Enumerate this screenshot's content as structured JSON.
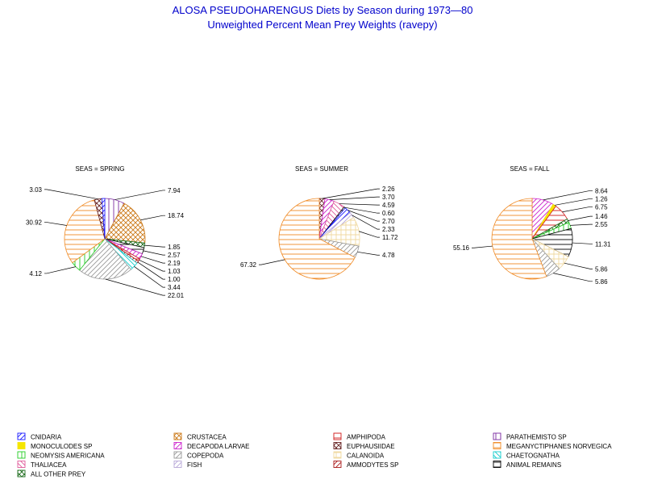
{
  "title_line1": "ALOSA PSEUDOHARENGUS Diets by Season during 1973—80",
  "title_line2": "Unweighted Percent Mean Prey Weights (ravepy)",
  "legend": [
    {
      "key": "CNIDARIA",
      "name": "CNIDARIA",
      "color": "#1a1aff",
      "pattern": "diag-r"
    },
    {
      "key": "CRUSTACEA",
      "name": "CRUSTACEA",
      "color": "#cc7a1a",
      "pattern": "cross-x"
    },
    {
      "key": "AMPHIPODA",
      "name": "AMPHIPODA",
      "color": "#d11a1a",
      "pattern": "horiz"
    },
    {
      "key": "PARATHEMISTO_SP",
      "name": "PARATHEMISTO SP",
      "color": "#7a2aa0",
      "pattern": "vert"
    },
    {
      "key": "MONOCULODES_SP",
      "name": "MONOCULODES SP",
      "color": "#f5e600",
      "pattern": "solid"
    },
    {
      "key": "DECAPODA_LARVAE",
      "name": "DECAPODA LARVAE",
      "color": "#cc22cc",
      "pattern": "diag-r"
    },
    {
      "key": "EUPHAUSIIDAE",
      "name": "EUPHAUSIIDAE",
      "color": "#662222",
      "pattern": "cross-x"
    },
    {
      "key": "MEGANYCTIPHANES_NORVEGICA",
      "name": "MEGANYCTIPHANES NORVEGICA",
      "color": "#f08a24",
      "pattern": "horiz"
    },
    {
      "key": "NEOMYSIS_AMERICANA",
      "name": "NEOMYSIS AMERICANA",
      "color": "#22cc22",
      "pattern": "vert"
    },
    {
      "key": "COPEPODA",
      "name": "COPEPODA",
      "color": "#9a9a9a",
      "pattern": "diag-r"
    },
    {
      "key": "CALANOIDA",
      "name": "CALANOIDA",
      "color": "#f0d9a0",
      "pattern": "cross-plus"
    },
    {
      "key": "CHAETOGNATHA",
      "name": "CHAETOGNATHA",
      "color": "#11cccc",
      "pattern": "diag-l"
    },
    {
      "key": "THALIACEA",
      "name": "THALIACEA",
      "color": "#e05a9a",
      "pattern": "diag-l"
    },
    {
      "key": "FISH",
      "name": "FISH",
      "color": "#b8a8d8",
      "pattern": "diag-r"
    },
    {
      "key": "AMMODYTES_SP",
      "name": "AMMODYTES SP",
      "color": "#aa1a1a",
      "pattern": "diag-r"
    },
    {
      "key": "ANIMAL_REMAINS",
      "name": "ANIMAL REMAINS",
      "color": "#000000",
      "pattern": "horiz"
    },
    {
      "key": "ALL_OTHER_PREY",
      "name": "ALL OTHER PREY",
      "color": "#1a6a1a",
      "pattern": "cross-x"
    }
  ],
  "chart_data": [
    {
      "type": "pie",
      "title": "SEAS = SPRING",
      "slices": [
        {
          "category": "PARATHEMISTO_SP",
          "value": 7.94,
          "label": "7.94"
        },
        {
          "category": "CRUSTACEA",
          "value": 18.74,
          "label": "18.74"
        },
        {
          "category": "ALL_OTHER_PREY",
          "value": 1.85,
          "label": "1.85"
        },
        {
          "category": "ANIMAL_REMAINS",
          "value": 2.57,
          "label": "2.57"
        },
        {
          "category": "DECAPODA_LARVAE",
          "value": 2.19,
          "label": "2.19"
        },
        {
          "category": "AMPHIPODA",
          "value": 1.03,
          "label": "1.03"
        },
        {
          "category": "AMMODYTES_SP",
          "value": 1.0,
          "label": "1.00"
        },
        {
          "category": "CHAETOGNATHA",
          "value": 3.44,
          "label": "3.44"
        },
        {
          "category": "COPEPODA",
          "value": 22.01,
          "label": "22.01"
        },
        {
          "category": "NEOMYSIS_AMERICANA",
          "value": 4.12,
          "label": "4.12"
        },
        {
          "category": "MEGANYCTIPHANES_NORVEGICA",
          "value": 30.92,
          "label": "30.92"
        },
        {
          "category": "EUPHAUSIIDAE",
          "value": 3.03,
          "label": "3.03"
        },
        {
          "category": "CNIDARIA",
          "value": 1.16,
          "label": ""
        }
      ]
    },
    {
      "type": "pie",
      "title": "SEAS = SUMMER",
      "slices": [
        {
          "category": "EUPHAUSIIDAE",
          "value": 2.26,
          "label": "2.26"
        },
        {
          "category": "DECAPODA_LARVAE",
          "value": 3.7,
          "label": "3.70"
        },
        {
          "category": "THALIACEA",
          "value": 4.59,
          "label": "4.59"
        },
        {
          "category": "ANIMAL_REMAINS",
          "value": 0.6,
          "label": "0.60"
        },
        {
          "category": "CNIDARIA",
          "value": 2.7,
          "label": "2.70"
        },
        {
          "category": "FISH",
          "value": 2.33,
          "label": "2.33"
        },
        {
          "category": "CALANOIDA",
          "value": 11.72,
          "label": "11.72"
        },
        {
          "category": "COPEPODA",
          "value": 4.78,
          "label": "4.78"
        },
        {
          "category": "MEGANYCTIPHANES_NORVEGICA",
          "value": 67.32,
          "label": "67.32"
        }
      ]
    },
    {
      "type": "pie",
      "title": "SEAS = FALL",
      "slices": [
        {
          "category": "DECAPODA_LARVAE",
          "value": 8.64,
          "label": "8.64"
        },
        {
          "category": "MONOCULODES_SP",
          "value": 1.26,
          "label": "1.26"
        },
        {
          "category": "AMPHIPODA",
          "value": 6.75,
          "label": "6.75"
        },
        {
          "category": "ALL_OTHER_PREY",
          "value": 1.46,
          "label": "1.46"
        },
        {
          "category": "NEOMYSIS_AMERICANA",
          "value": 2.55,
          "label": "2.55"
        },
        {
          "category": "ANIMAL_REMAINS",
          "value": 11.31,
          "label": "11.31"
        },
        {
          "category": "CALANOIDA",
          "value": 5.86,
          "label": "5.86"
        },
        {
          "category": "COPEPODA",
          "value": 5.86,
          "label": "5.86"
        },
        {
          "category": "MEGANYCTIPHANES_NORVEGICA",
          "value": 55.16,
          "label": "55.16"
        }
      ]
    }
  ]
}
